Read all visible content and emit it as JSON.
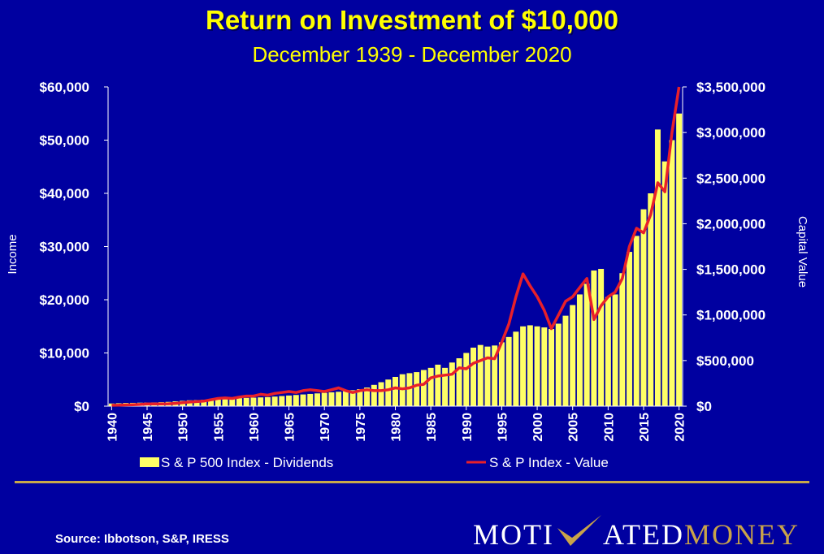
{
  "title": "Return on Investment of $10,000",
  "subtitle": "December 1939  - December 2020",
  "source": "Source: Ibbotson, S&P, IRESS",
  "logo": {
    "part1": "MOTI",
    "part2": "ATED",
    "part3": "MONEY"
  },
  "colors": {
    "background": "#0000a0",
    "bars": "#ffff66",
    "line": "#e8202a",
    "title": "#ffff00",
    "logo_gold": "#c9a34a"
  },
  "chart_data": {
    "type": "bar",
    "secondary_type": "line",
    "title": "Return on Investment of $10,000",
    "subtitle": "December 1939  - December 2020",
    "ylabel": "Income",
    "y2label": "Capital Value",
    "ylim": [
      0,
      60000
    ],
    "y2lim": [
      0,
      3500000
    ],
    "yticks": [
      "$0",
      "$10,000",
      "$20,000",
      "$30,000",
      "$40,000",
      "$50,000",
      "$60,000"
    ],
    "y2ticks": [
      "$0",
      "$500,000",
      "$1,000,000",
      "$1,500,000",
      "$2,000,000",
      "$2,500,000",
      "$3,000,000",
      "$3,500,000"
    ],
    "xticks": [
      "1940",
      "1945",
      "1950",
      "1955",
      "1960",
      "1965",
      "1970",
      "1975",
      "1980",
      "1985",
      "1990",
      "1995",
      "2000",
      "2005",
      "2010",
      "2015",
      "2020"
    ],
    "x": [
      1940,
      1941,
      1942,
      1943,
      1944,
      1945,
      1946,
      1947,
      1948,
      1949,
      1950,
      1951,
      1952,
      1953,
      1954,
      1955,
      1956,
      1957,
      1958,
      1959,
      1960,
      1961,
      1962,
      1963,
      1964,
      1965,
      1966,
      1967,
      1968,
      1969,
      1970,
      1971,
      1972,
      1973,
      1974,
      1975,
      1976,
      1977,
      1978,
      1979,
      1980,
      1981,
      1982,
      1983,
      1984,
      1985,
      1986,
      1987,
      1988,
      1989,
      1990,
      1991,
      1992,
      1993,
      1994,
      1995,
      1996,
      1997,
      1998,
      1999,
      2000,
      2001,
      2002,
      2003,
      2004,
      2005,
      2006,
      2007,
      2008,
      2009,
      2010,
      2011,
      2012,
      2013,
      2014,
      2015,
      2016,
      2017,
      2018,
      2019,
      2020
    ],
    "series": [
      {
        "name": "S & P 500 Index - Dividends",
        "type": "bar",
        "values": [
          500,
          550,
          600,
          620,
          650,
          680,
          700,
          750,
          800,
          900,
          1000,
          1100,
          1150,
          1200,
          1250,
          1300,
          1400,
          1450,
          1500,
          1550,
          1600,
          1650,
          1700,
          1800,
          1900,
          2000,
          2100,
          2200,
          2300,
          2400,
          2500,
          2600,
          2700,
          2800,
          3000,
          3200,
          3500,
          4000,
          4500,
          5000,
          5500,
          6000,
          6200,
          6400,
          6800,
          7200,
          7800,
          7200,
          8200,
          9000,
          10000,
          11000,
          11500,
          11200,
          11400,
          12000,
          13000,
          14000,
          15000,
          15200,
          15000,
          14800,
          14500,
          15500,
          17000,
          19000,
          21000,
          23000,
          25500,
          25800,
          20500,
          21000,
          25000,
          29000,
          32000,
          37000,
          40000,
          52000,
          46000,
          50000,
          55000
        ]
      },
      {
        "name": "S & P Index - Value",
        "type": "line",
        "values": [
          10000,
          11000,
          13000,
          16000,
          19000,
          24000,
          24000,
          25000,
          26000,
          30000,
          38000,
          45000,
          50000,
          55000,
          70000,
          85000,
          90000,
          85000,
          100000,
          110000,
          110000,
          130000,
          120000,
          140000,
          150000,
          160000,
          150000,
          170000,
          180000,
          170000,
          160000,
          180000,
          200000,
          170000,
          150000,
          170000,
          180000,
          170000,
          170000,
          180000,
          200000,
          190000,
          200000,
          230000,
          240000,
          310000,
          330000,
          340000,
          350000,
          420000,
          410000,
          470000,
          500000,
          530000,
          520000,
          700000,
          900000,
          1200000,
          1450000,
          1320000,
          1200000,
          1050000,
          850000,
          1000000,
          1150000,
          1200000,
          1300000,
          1400000,
          950000,
          1100000,
          1200000,
          1250000,
          1400000,
          1750000,
          1950000,
          1900000,
          2100000,
          2450000,
          2350000,
          3000000,
          3500000
        ]
      }
    ],
    "legend_position": "bottom",
    "grid": false
  }
}
